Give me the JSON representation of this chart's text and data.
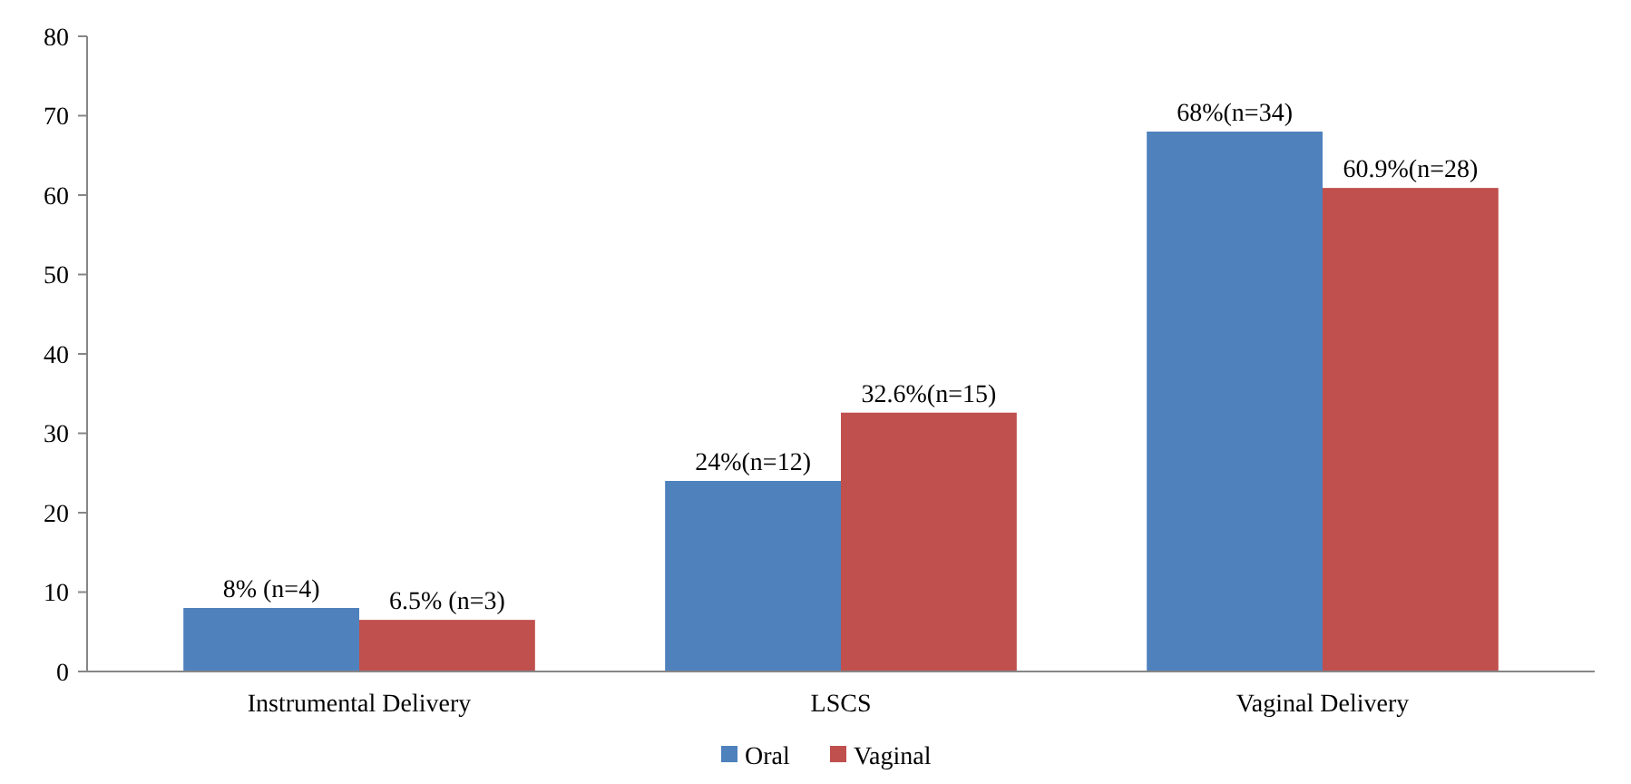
{
  "chart_data": {
    "type": "bar",
    "categories": [
      "Instrumental Delivery",
      "LSCS",
      "Vaginal Delivery"
    ],
    "series": [
      {
        "name": "Oral",
        "color": "#4f81bd",
        "values": [
          8,
          24,
          68
        ],
        "value_labels": [
          "8% (n=4)",
          "24%(n=12)",
          "68%(n=34)"
        ]
      },
      {
        "name": "Vaginal",
        "color": "#c0504d",
        "values": [
          6.5,
          32.6,
          60.9
        ],
        "value_labels": [
          "6.5% (n=3)",
          "32.6%(n=15)",
          "60.9%(n=28)"
        ]
      }
    ],
    "ylim": [
      0,
      80
    ],
    "yticks": [
      0,
      10,
      20,
      30,
      40,
      50,
      60,
      70,
      80
    ],
    "grid": false,
    "legend": "bottom"
  }
}
